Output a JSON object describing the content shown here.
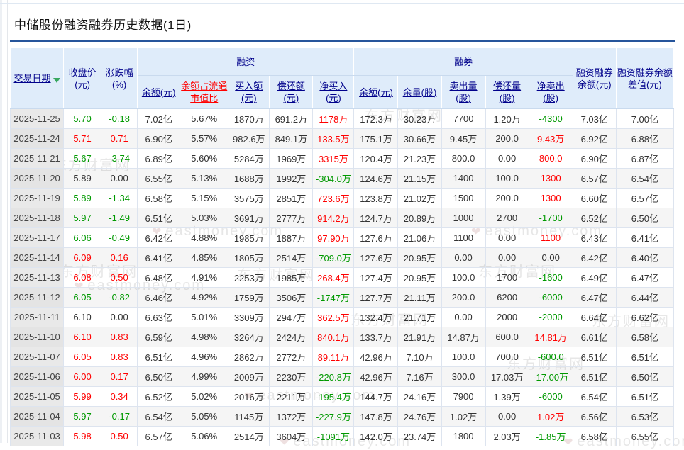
{
  "page": {
    "title": "中储股份融资融券历史数据(1日)"
  },
  "watermark": {
    "brand": "东方财富网",
    "domain": "eastmoney.com"
  },
  "colors": {
    "accent_rule": "#26559b",
    "header_bg": "#dfecfa",
    "header_link": "#00008b",
    "ratio_link": "#ff0000",
    "positive": "#ff0000",
    "negative": "#009900",
    "date_cell_bg": "#e9e9e9"
  },
  "table": {
    "groups": {
      "rz": "融资",
      "rq": "融券"
    },
    "headers": {
      "date": "交易日期",
      "close": "收盘价(元)",
      "change": "涨跌幅(%)",
      "rz_balance": "余额(元)",
      "rz_ratio": "余额占流通市值比",
      "rz_buy": "买入额(元)",
      "rz_repay": "偿还额(元)",
      "rz_net": "净买入(元)",
      "rq_balance": "余额(元)",
      "rq_remain": "余量(股)",
      "rq_sell": "卖出量(股)",
      "rq_repay": "偿还量(股)",
      "rq_net": "净卖出(股)",
      "total": "融资融券余额(元)",
      "diff": "融资融券余额差值(元)"
    },
    "rows": [
      {
        "date": "2025-11-25",
        "cells": [
          [
            "5.70",
            "dn"
          ],
          [
            "-0.18",
            "dn"
          ],
          [
            "7.02亿",
            ""
          ],
          [
            "5.67%",
            ""
          ],
          [
            "1870万",
            ""
          ],
          [
            "691.2万",
            ""
          ],
          [
            "1178万",
            "up"
          ],
          [
            "172.3万",
            ""
          ],
          [
            "30.23万",
            ""
          ],
          [
            "7700",
            ""
          ],
          [
            "1.20万",
            ""
          ],
          [
            "-4300",
            "dn"
          ],
          [
            "7.03亿",
            ""
          ],
          [
            "7.00亿",
            ""
          ]
        ]
      },
      {
        "date": "2025-11-24",
        "cells": [
          [
            "5.71",
            "up"
          ],
          [
            "0.71",
            "up"
          ],
          [
            "6.90亿",
            ""
          ],
          [
            "5.57%",
            ""
          ],
          [
            "982.6万",
            ""
          ],
          [
            "849.1万",
            ""
          ],
          [
            "133.5万",
            "up"
          ],
          [
            "175.1万",
            ""
          ],
          [
            "30.66万",
            ""
          ],
          [
            "9.45万",
            ""
          ],
          [
            "200.0",
            ""
          ],
          [
            "9.43万",
            "up"
          ],
          [
            "6.92亿",
            ""
          ],
          [
            "6.88亿",
            ""
          ]
        ]
      },
      {
        "date": "2025-11-21",
        "cells": [
          [
            "5.67",
            "dn"
          ],
          [
            "-3.74",
            "dn"
          ],
          [
            "6.89亿",
            ""
          ],
          [
            "5.60%",
            ""
          ],
          [
            "5284万",
            ""
          ],
          [
            "1969万",
            ""
          ],
          [
            "3315万",
            "up"
          ],
          [
            "120.4万",
            ""
          ],
          [
            "21.23万",
            ""
          ],
          [
            "800.0",
            ""
          ],
          [
            "0.00",
            ""
          ],
          [
            "800.0",
            "up"
          ],
          [
            "6.90亿",
            ""
          ],
          [
            "6.87亿",
            ""
          ]
        ]
      },
      {
        "date": "2025-11-20",
        "cells": [
          [
            "5.89",
            ""
          ],
          [
            "0.00",
            ""
          ],
          [
            "6.55亿",
            ""
          ],
          [
            "5.13%",
            ""
          ],
          [
            "1688万",
            ""
          ],
          [
            "1992万",
            ""
          ],
          [
            "-304.0万",
            "dn"
          ],
          [
            "124.6万",
            ""
          ],
          [
            "21.15万",
            ""
          ],
          [
            "1400",
            ""
          ],
          [
            "100.0",
            ""
          ],
          [
            "1300",
            "up"
          ],
          [
            "6.57亿",
            ""
          ],
          [
            "6.54亿",
            ""
          ]
        ]
      },
      {
        "date": "2025-11-19",
        "cells": [
          [
            "5.89",
            "dn"
          ],
          [
            "-1.34",
            "dn"
          ],
          [
            "6.58亿",
            ""
          ],
          [
            "5.15%",
            ""
          ],
          [
            "3575万",
            ""
          ],
          [
            "2851万",
            ""
          ],
          [
            "723.6万",
            "up"
          ],
          [
            "123.8万",
            ""
          ],
          [
            "21.02万",
            ""
          ],
          [
            "1500",
            ""
          ],
          [
            "200.0",
            ""
          ],
          [
            "1300",
            "up"
          ],
          [
            "6.60亿",
            ""
          ],
          [
            "6.57亿",
            ""
          ]
        ]
      },
      {
        "date": "2025-11-18",
        "cells": [
          [
            "5.97",
            "dn"
          ],
          [
            "-1.49",
            "dn"
          ],
          [
            "6.51亿",
            ""
          ],
          [
            "5.03%",
            ""
          ],
          [
            "3691万",
            ""
          ],
          [
            "2777万",
            ""
          ],
          [
            "914.2万",
            "up"
          ],
          [
            "124.7万",
            ""
          ],
          [
            "20.89万",
            ""
          ],
          [
            "1000",
            ""
          ],
          [
            "2700",
            ""
          ],
          [
            "-1700",
            "dn"
          ],
          [
            "6.52亿",
            ""
          ],
          [
            "6.50亿",
            ""
          ]
        ]
      },
      {
        "date": "2025-11-17",
        "cells": [
          [
            "6.06",
            "dn"
          ],
          [
            "-0.49",
            "dn"
          ],
          [
            "6.42亿",
            ""
          ],
          [
            "4.88%",
            ""
          ],
          [
            "1985万",
            ""
          ],
          [
            "1887万",
            ""
          ],
          [
            "97.90万",
            "up"
          ],
          [
            "127.6万",
            ""
          ],
          [
            "21.06万",
            ""
          ],
          [
            "1100",
            ""
          ],
          [
            "0.00",
            ""
          ],
          [
            "1100",
            "up"
          ],
          [
            "6.43亿",
            ""
          ],
          [
            "6.41亿",
            ""
          ]
        ]
      },
      {
        "date": "2025-11-14",
        "cells": [
          [
            "6.09",
            "up"
          ],
          [
            "0.16",
            "up"
          ],
          [
            "6.41亿",
            ""
          ],
          [
            "4.85%",
            ""
          ],
          [
            "1805万",
            ""
          ],
          [
            "2514万",
            ""
          ],
          [
            "-709.0万",
            "dn"
          ],
          [
            "127.6万",
            ""
          ],
          [
            "20.95万",
            ""
          ],
          [
            "0.00",
            ""
          ],
          [
            "0.00",
            ""
          ],
          [
            "0.00",
            ""
          ],
          [
            "6.42亿",
            ""
          ],
          [
            "6.40亿",
            ""
          ]
        ]
      },
      {
        "date": "2025-11-13",
        "cells": [
          [
            "6.08",
            "up"
          ],
          [
            "0.50",
            "up"
          ],
          [
            "6.48亿",
            ""
          ],
          [
            "4.91%",
            ""
          ],
          [
            "2253万",
            ""
          ],
          [
            "1985万",
            ""
          ],
          [
            "268.4万",
            "up"
          ],
          [
            "127.4万",
            ""
          ],
          [
            "20.95万",
            ""
          ],
          [
            "100.0",
            ""
          ],
          [
            "1700",
            ""
          ],
          [
            "-1600",
            "dn"
          ],
          [
            "6.49亿",
            ""
          ],
          [
            "6.47亿",
            ""
          ]
        ]
      },
      {
        "date": "2025-11-12",
        "cells": [
          [
            "6.05",
            "dn"
          ],
          [
            "-0.82",
            "dn"
          ],
          [
            "6.46亿",
            ""
          ],
          [
            "4.92%",
            ""
          ],
          [
            "1759万",
            ""
          ],
          [
            "3506万",
            ""
          ],
          [
            "-1747万",
            "dn"
          ],
          [
            "127.7万",
            ""
          ],
          [
            "21.11万",
            ""
          ],
          [
            "200.0",
            ""
          ],
          [
            "6200",
            ""
          ],
          [
            "-6000",
            "dn"
          ],
          [
            "6.47亿",
            ""
          ],
          [
            "6.44亿",
            ""
          ]
        ]
      },
      {
        "date": "2025-11-11",
        "cells": [
          [
            "6.10",
            ""
          ],
          [
            "0.00",
            ""
          ],
          [
            "6.63亿",
            ""
          ],
          [
            "5.01%",
            ""
          ],
          [
            "3309万",
            ""
          ],
          [
            "2947万",
            ""
          ],
          [
            "362.5万",
            "up"
          ],
          [
            "132.4万",
            ""
          ],
          [
            "21.71万",
            ""
          ],
          [
            "0.00",
            ""
          ],
          [
            "2000",
            ""
          ],
          [
            "-2000",
            "dn"
          ],
          [
            "6.64亿",
            ""
          ],
          [
            "6.62亿",
            ""
          ]
        ]
      },
      {
        "date": "2025-11-10",
        "cells": [
          [
            "6.10",
            "up"
          ],
          [
            "0.83",
            "up"
          ],
          [
            "6.59亿",
            ""
          ],
          [
            "4.98%",
            ""
          ],
          [
            "3264万",
            ""
          ],
          [
            "2424万",
            ""
          ],
          [
            "840.1万",
            "up"
          ],
          [
            "133.7万",
            ""
          ],
          [
            "21.91万",
            ""
          ],
          [
            "14.87万",
            ""
          ],
          [
            "600.0",
            ""
          ],
          [
            "14.81万",
            "up"
          ],
          [
            "6.61亿",
            ""
          ],
          [
            "6.58亿",
            ""
          ]
        ]
      },
      {
        "date": "2025-11-07",
        "cells": [
          [
            "6.05",
            "up"
          ],
          [
            "0.83",
            "up"
          ],
          [
            "6.51亿",
            ""
          ],
          [
            "4.96%",
            ""
          ],
          [
            "2862万",
            ""
          ],
          [
            "2772万",
            ""
          ],
          [
            "89.11万",
            "up"
          ],
          [
            "42.96万",
            ""
          ],
          [
            "7.10万",
            ""
          ],
          [
            "100.0",
            ""
          ],
          [
            "700.0",
            ""
          ],
          [
            "-600.0",
            "dn"
          ],
          [
            "6.51亿",
            ""
          ],
          [
            "6.51亿",
            ""
          ]
        ]
      },
      {
        "date": "2025-11-06",
        "cells": [
          [
            "6.00",
            "up"
          ],
          [
            "0.17",
            "up"
          ],
          [
            "6.50亿",
            ""
          ],
          [
            "4.99%",
            ""
          ],
          [
            "2009万",
            ""
          ],
          [
            "2230万",
            ""
          ],
          [
            "-220.8万",
            "dn"
          ],
          [
            "42.96万",
            ""
          ],
          [
            "7.16万",
            ""
          ],
          [
            "300.0",
            ""
          ],
          [
            "17.03万",
            ""
          ],
          [
            "-17.00万",
            "dn"
          ],
          [
            "6.51亿",
            ""
          ],
          [
            "6.50亿",
            ""
          ]
        ]
      },
      {
        "date": "2025-11-05",
        "cells": [
          [
            "5.99",
            "up"
          ],
          [
            "0.34",
            "up"
          ],
          [
            "6.52亿",
            ""
          ],
          [
            "5.02%",
            ""
          ],
          [
            "2016万",
            ""
          ],
          [
            "2211万",
            ""
          ],
          [
            "-195.4万",
            "dn"
          ],
          [
            "144.7万",
            ""
          ],
          [
            "24.16万",
            ""
          ],
          [
            "7900",
            ""
          ],
          [
            "1.39万",
            ""
          ],
          [
            "-6000",
            "dn"
          ],
          [
            "6.54亿",
            ""
          ],
          [
            "6.51亿",
            ""
          ]
        ]
      },
      {
        "date": "2025-11-04",
        "cells": [
          [
            "5.97",
            "dn"
          ],
          [
            "-0.17",
            "dn"
          ],
          [
            "6.54亿",
            ""
          ],
          [
            "5.05%",
            ""
          ],
          [
            "1145万",
            ""
          ],
          [
            "1372万",
            ""
          ],
          [
            "-227.9万",
            "dn"
          ],
          [
            "147.8万",
            ""
          ],
          [
            "24.76万",
            ""
          ],
          [
            "1.02万",
            ""
          ],
          [
            "0.00",
            ""
          ],
          [
            "1.02万",
            "up"
          ],
          [
            "6.56亿",
            ""
          ],
          [
            "6.53亿",
            ""
          ]
        ]
      },
      {
        "date": "2025-11-03",
        "cells": [
          [
            "5.98",
            "up"
          ],
          [
            "0.50",
            "up"
          ],
          [
            "6.57亿",
            ""
          ],
          [
            "5.06%",
            ""
          ],
          [
            "2514万",
            ""
          ],
          [
            "3604万",
            ""
          ],
          [
            "-1091万",
            "dn"
          ],
          [
            "142.0万",
            ""
          ],
          [
            "23.74万",
            ""
          ],
          [
            "1800",
            ""
          ],
          [
            "2.03万",
            ""
          ],
          [
            "-1.85万",
            "dn"
          ],
          [
            "6.58亿",
            ""
          ],
          [
            "6.55亿",
            ""
          ]
        ]
      }
    ]
  }
}
